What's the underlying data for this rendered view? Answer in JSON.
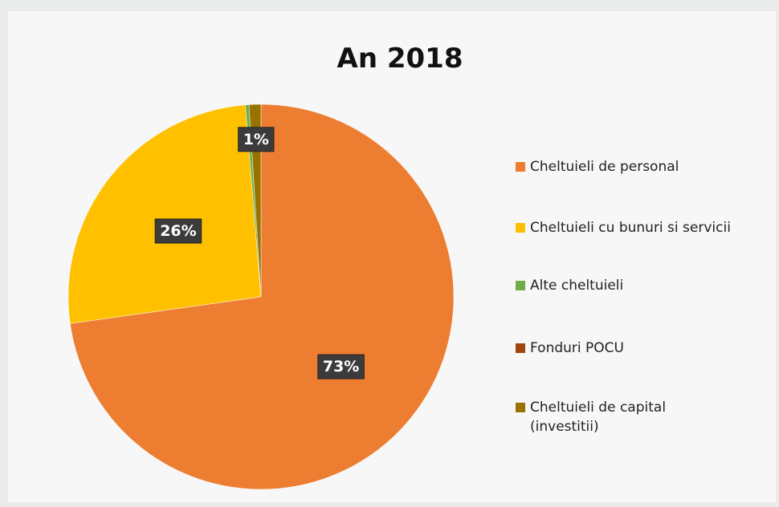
{
  "chart_data": {
    "type": "pie",
    "title": "An 2018",
    "categories": [
      "Cheltuieli de personal",
      "Cheltuieli cu bunuri si servicii",
      "Alte cheltuieli",
      "Fonduri POCU",
      "Cheltuieli de capital (investitii)"
    ],
    "values": [
      73,
      26,
      0.3,
      0,
      1
    ],
    "value_labels": [
      "73%",
      "26%",
      null,
      null,
      "1%"
    ],
    "colors": [
      "#ed7d31",
      "#ffc000",
      "#70ad47",
      "#9e480e",
      "#997300"
    ],
    "legend": "right"
  }
}
